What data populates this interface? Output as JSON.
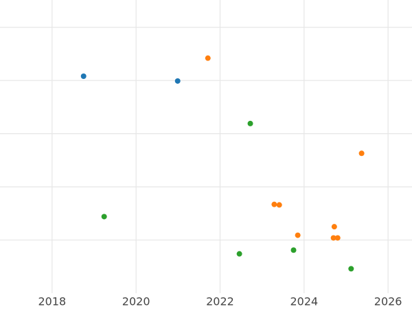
{
  "chart_data": {
    "type": "scatter",
    "series": [
      {
        "color": "#1f77b4",
        "x": [
          2018.75,
          2020.99
        ],
        "values": [
          4.08,
          3.99
        ]
      },
      {
        "color": "#ff7f0e",
        "x": [
          2021.71,
          2025.37,
          2023.29,
          2023.41,
          2024.72,
          2023.85,
          2024.7,
          2024.8
        ],
        "values": [
          4.42,
          2.63,
          1.67,
          1.66,
          1.25,
          1.09,
          1.04,
          1.04
        ]
      },
      {
        "color": "#2ca02c",
        "x": [
          2022.72,
          2019.24,
          2022.46,
          2023.75,
          2025.12
        ],
        "values": [
          3.19,
          1.44,
          0.74,
          0.81,
          0.46
        ]
      }
    ],
    "xlim": [
      2016.76,
      2026.57
    ],
    "xticks": [
      2018,
      2020,
      2022,
      2024,
      2026
    ],
    "ylim": [
      0,
      5.5
    ],
    "yticks": [
      1,
      2,
      3,
      4,
      5
    ],
    "grid": true
  }
}
